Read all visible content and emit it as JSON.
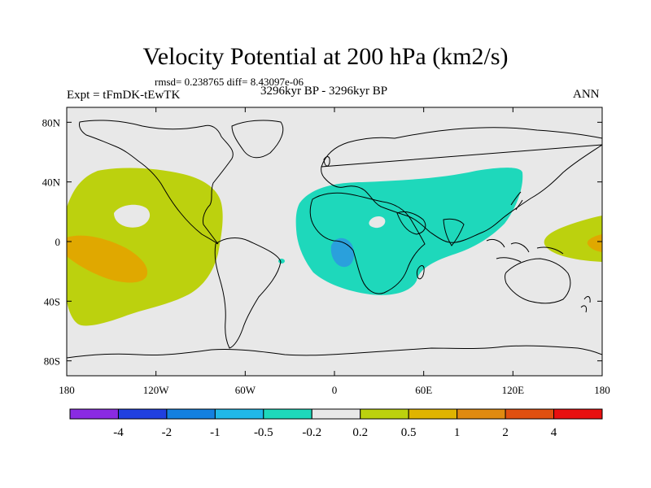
{
  "header": {
    "title": "Velocity Potential at 200 hPa (km2/s)",
    "stats": "rmsd= 0.238765 diff= 8.43097e-06",
    "experiment": "Expt = tFmDK-tEwTK",
    "period": "3296kyr BP - 3296kyr BP",
    "season": "ANN"
  },
  "map": {
    "lon_range": [
      -180,
      180
    ],
    "lat_range": [
      -90,
      90
    ],
    "x_ticks": [
      {
        "lon": -180,
        "label": "180"
      },
      {
        "lon": -120,
        "label": "120W"
      },
      {
        "lon": -60,
        "label": "60W"
      },
      {
        "lon": 0,
        "label": "0"
      },
      {
        "lon": 60,
        "label": "60E"
      },
      {
        "lon": 120,
        "label": "120E"
      },
      {
        "lon": 180,
        "label": "180"
      }
    ],
    "y_ticks": [
      {
        "lat": 80,
        "label": "80N"
      },
      {
        "lat": 40,
        "label": "40N"
      },
      {
        "lat": 0,
        "label": "0"
      },
      {
        "lat": -40,
        "label": "40S"
      },
      {
        "lat": -80,
        "label": "80S"
      }
    ],
    "background_color": "#e8e8e8",
    "regions": [
      {
        "name": "east-pacific-positive",
        "level": "0.2 to 0.5",
        "color": "#bcd10e"
      },
      {
        "name": "east-pacific-core",
        "level": "0.5 to 1",
        "color": "#e0a800"
      },
      {
        "name": "west-pacific-positive",
        "level": "0.2 to 0.5",
        "color": "#bcd10e"
      },
      {
        "name": "west-pacific-core",
        "level": "0.5 to 1",
        "color": "#e0a800"
      },
      {
        "name": "africa-negative",
        "level": "-0.5 to -0.2",
        "color": "#1ed8bb"
      },
      {
        "name": "africa-core",
        "level": "-1 to -0.5",
        "color": "#2aa0dc"
      }
    ]
  },
  "colorbar": {
    "colors": [
      "#8a2be2",
      "#2040e0",
      "#1480e0",
      "#20b8e8",
      "#1ed8bb",
      "#e8e8e8",
      "#bcd10e",
      "#e0b400",
      "#e08a10",
      "#e05010",
      "#e81010"
    ],
    "labels": [
      "-4",
      "-2",
      "-1",
      "-0.5",
      "-0.2",
      "0.2",
      "0.5",
      "1",
      "2",
      "4"
    ]
  }
}
